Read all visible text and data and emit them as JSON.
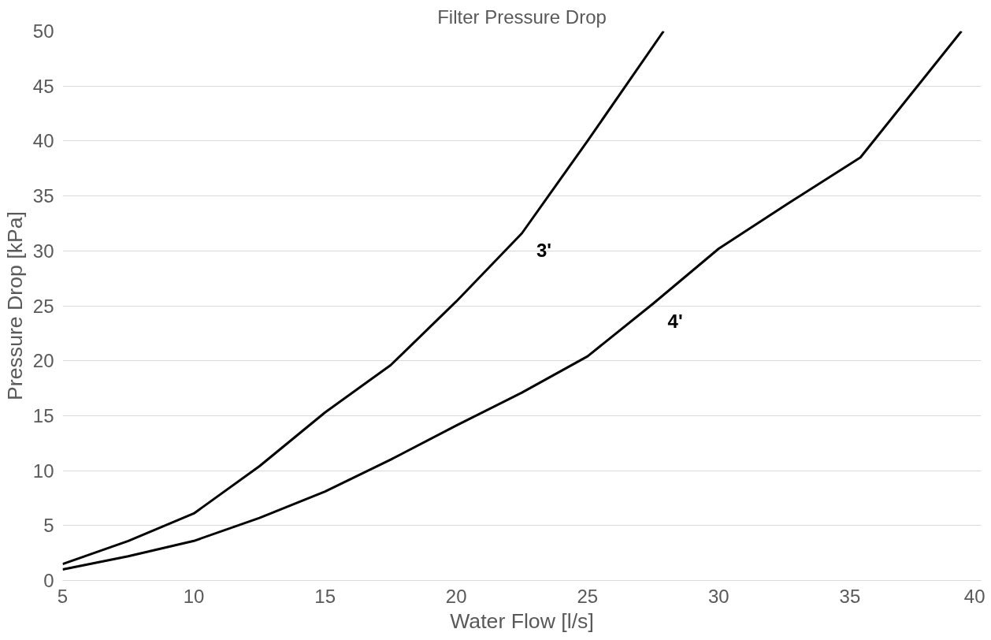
{
  "chart_data": {
    "type": "line",
    "title": "Filter Pressure Drop",
    "xlabel": "Water Flow [l/s]",
    "ylabel": "Pressure Drop [kPa]",
    "xlim": [
      5,
      40
    ],
    "xticks": [
      5,
      10,
      15,
      20,
      25,
      30,
      35,
      40
    ],
    "ylim": [
      0,
      50
    ],
    "yticks": [
      0,
      5,
      10,
      15,
      20,
      25,
      30,
      35,
      40,
      45,
      50
    ],
    "grid": "y",
    "marker": "none",
    "line_style": "solid",
    "series": [
      {
        "name": "3'",
        "color": "#000000",
        "x": [
          5,
          7.5,
          10,
          12.5,
          15,
          17.5,
          20,
          22.5,
          25,
          27.9
        ],
        "values": [
          1.5,
          3.6,
          6.1,
          10.4,
          15.3,
          19.6,
          25.4,
          31.6,
          40,
          50
        ]
      },
      {
        "name": "4'",
        "color": "#000000",
        "x": [
          5,
          7.5,
          10,
          12.5,
          15,
          17.5,
          20,
          22.5,
          25,
          27.5,
          30,
          32.5,
          35.4,
          39.25
        ],
        "values": [
          1.0,
          2.2,
          3.6,
          5.7,
          8.1,
          11,
          14.1,
          17.1,
          20.4,
          25.2,
          30.2,
          34.1,
          38.5,
          50
        ]
      }
    ]
  }
}
